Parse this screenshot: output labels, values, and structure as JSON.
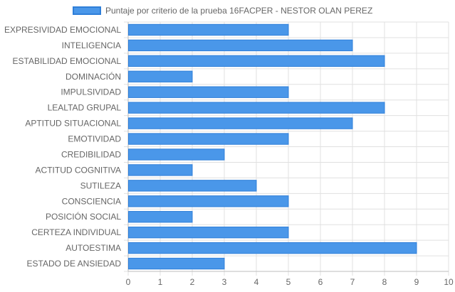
{
  "chart_data": {
    "type": "bar",
    "orientation": "horizontal",
    "legend_label": "Puntaje por criterio de la prueba 16FACPER - NESTOR OLAN PEREZ",
    "legend_position": "top-center",
    "categories": [
      "EXPRESIVIDAD EMOCIONAL",
      "INTELIGENCIA",
      "ESTABILIDAD EMOCIONAL",
      "DOMINACIÓN",
      "IMPULSIVIDAD",
      "LEALTAD GRUPAL",
      "APTITUD SITUACIONAL",
      "EMOTIVIDAD",
      "CREDIBILIDAD",
      "ACTITUD COGNITIVA",
      "SUTILEZA",
      "CONSCIENCIA",
      "POSICIÓN SOCIAL",
      "CERTEZA INDIVIDUAL",
      "AUTOESTIMA",
      "ESTADO DE ANSIEDAD"
    ],
    "values": [
      5,
      7,
      8,
      2,
      5,
      8,
      7,
      5,
      3,
      2,
      4,
      5,
      2,
      5,
      9,
      3
    ],
    "xlim": [
      0,
      10
    ],
    "x_ticks": [
      "0",
      "1",
      "2",
      "3",
      "4",
      "5",
      "6",
      "7",
      "8",
      "9",
      "10"
    ],
    "grid": true,
    "bar_color": "#4a97e9",
    "bar_border_color": "#2f7fd9",
    "grid_color": "#e0e0e0",
    "axis_color": "#bdbdbd",
    "text_color": "#666666"
  }
}
